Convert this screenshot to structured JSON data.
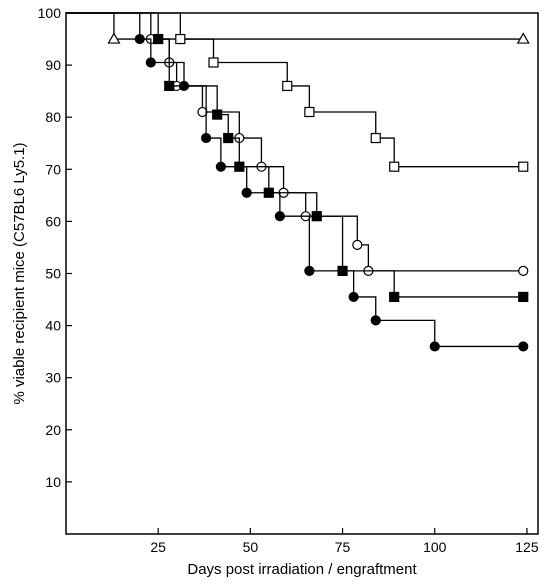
{
  "chart_data": {
    "type": "line",
    "subtype": "kaplan-meier step plot",
    "title": "",
    "xlabel": "Days post irradiation / engraftment",
    "ylabel": "% viable recipient mice (C57BL6 Ly5.1)",
    "xlim": [
      0,
      128
    ],
    "ylim": [
      0,
      100
    ],
    "xticks": [
      25,
      50,
      75,
      100,
      125
    ],
    "yticks": [
      10,
      20,
      30,
      40,
      50,
      60,
      70,
      80,
      90,
      100
    ],
    "grid": false,
    "legend": "none",
    "color": "#000000",
    "series": [
      {
        "marker": "open-triangle",
        "steps": [
          [
            0,
            100
          ],
          [
            13,
            95
          ],
          [
            124,
            95
          ]
        ],
        "markers": [
          [
            13,
            95
          ],
          [
            124,
            95
          ]
        ]
      },
      {
        "marker": "open-square",
        "steps": [
          [
            0,
            100
          ],
          [
            31,
            95
          ],
          [
            40,
            90.5
          ],
          [
            60,
            86
          ],
          [
            66,
            81
          ],
          [
            84,
            76
          ],
          [
            89,
            70.5
          ],
          [
            124,
            70.5
          ]
        ],
        "markers": [
          [
            31,
            95
          ],
          [
            40,
            90.5
          ],
          [
            60,
            86
          ],
          [
            66,
            81
          ],
          [
            84,
            76
          ],
          [
            89,
            70.5
          ],
          [
            124,
            70.5
          ]
        ]
      },
      {
        "marker": "open-circle",
        "steps": [
          [
            0,
            100
          ],
          [
            23,
            95
          ],
          [
            28,
            90.5
          ],
          [
            30,
            86
          ],
          [
            37,
            81
          ],
          [
            47,
            76
          ],
          [
            53,
            70.5
          ],
          [
            59,
            65.5
          ],
          [
            65,
            61
          ],
          [
            79,
            55.5
          ],
          [
            82,
            50.5
          ],
          [
            124,
            50.5
          ]
        ],
        "markers": [
          [
            23,
            95
          ],
          [
            28,
            90.5
          ],
          [
            30,
            86
          ],
          [
            37,
            81
          ],
          [
            47,
            76
          ],
          [
            53,
            70.5
          ],
          [
            59,
            65.5
          ],
          [
            65,
            61
          ],
          [
            79,
            55.5
          ],
          [
            82,
            50.5
          ],
          [
            124,
            50.5
          ]
        ]
      },
      {
        "marker": "filled-square",
        "steps": [
          [
            0,
            100
          ],
          [
            25,
            95
          ],
          [
            28,
            86
          ],
          [
            41,
            80.5
          ],
          [
            44,
            76
          ],
          [
            47,
            70.5
          ],
          [
            55,
            65.5
          ],
          [
            68,
            61
          ],
          [
            75,
            50.5
          ],
          [
            89,
            45.5
          ],
          [
            124,
            45.5
          ]
        ],
        "markers": [
          [
            25,
            95
          ],
          [
            28,
            86
          ],
          [
            41,
            80.5
          ],
          [
            44,
            76
          ],
          [
            47,
            70.5
          ],
          [
            55,
            65.5
          ],
          [
            68,
            61
          ],
          [
            75,
            50.5
          ],
          [
            89,
            45.5
          ],
          [
            124,
            45.5
          ]
        ]
      },
      {
        "marker": "filled-circle",
        "steps": [
          [
            0,
            100
          ],
          [
            20,
            95
          ],
          [
            23,
            90.5
          ],
          [
            32,
            86
          ],
          [
            38,
            76
          ],
          [
            42,
            70.5
          ],
          [
            49,
            65.5
          ],
          [
            58,
            61
          ],
          [
            66,
            50.5
          ],
          [
            78,
            45.5
          ],
          [
            84,
            41
          ],
          [
            100,
            36
          ],
          [
            124,
            36
          ]
        ],
        "markers": [
          [
            20,
            95
          ],
          [
            23,
            90.5
          ],
          [
            32,
            86
          ],
          [
            38,
            76
          ],
          [
            42,
            70.5
          ],
          [
            49,
            65.5
          ],
          [
            58,
            61
          ],
          [
            66,
            50.5
          ],
          [
            78,
            45.5
          ],
          [
            84,
            41
          ],
          [
            100,
            36
          ],
          [
            124,
            36
          ]
        ]
      }
    ]
  }
}
